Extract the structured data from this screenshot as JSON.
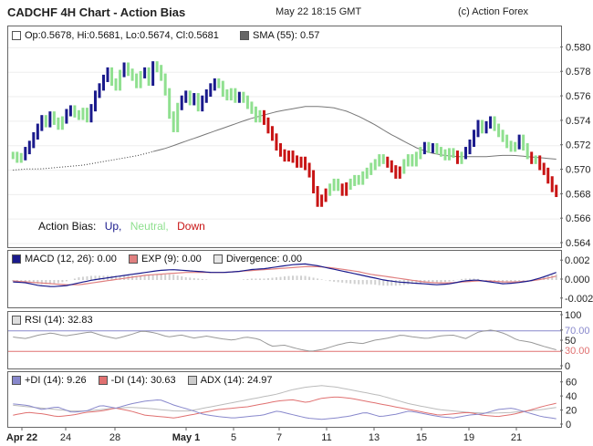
{
  "header": {
    "title": "CADCHF 4H Chart - Action Bias",
    "datetime": "May 22 18:15 GMT",
    "copyright": "(c) Action Forex"
  },
  "colors": {
    "up": "#1a1a8c",
    "neutral": "#90e090",
    "down": "#c81414",
    "sma": "#777777",
    "macd": "#1a1a8c",
    "exp": "#e08080",
    "divergence": "#d0d0d0",
    "rsi": "#999999",
    "rsi_upper": "#8888cc",
    "rsi_lower": "#e07070",
    "plus_di": "#8888cc",
    "minus_di": "#e07070",
    "adx": "#bbbbbb"
  },
  "main": {
    "ohlc_legend": "Op:0.5678, Hi:0.5681, Lo:0.5674, Cl:0.5681",
    "sma_legend": "SMA (55): 0.57",
    "bias_label": "Action Bias:",
    "bias_up": "Up,",
    "bias_neutral": "Neutral,",
    "bias_down": "Down"
  },
  "macd": {
    "macd_legend": "MACD (12, 26): 0.00",
    "exp_legend": "EXP (9): 0.00",
    "div_legend": "Divergence: 0.00"
  },
  "rsi": {
    "rsi_legend": "RSI (14): 32.83"
  },
  "dmi": {
    "plus_di_legend": "+DI (14): 9.26",
    "minus_di_legend": "-DI (14): 30.63",
    "adx_legend": "ADX (14): 24.97"
  },
  "chart_data": {
    "type": "bar",
    "x_tick_labels": [
      "Apr 22",
      "24",
      "28",
      "May 1",
      "5",
      "7",
      "11",
      "13",
      "15",
      "19",
      "21"
    ],
    "bold_tick_labels": [
      "Apr 22",
      "May 1"
    ],
    "price_axis": {
      "ylim": [
        0.564,
        0.581
      ],
      "ticks": [
        "0.580",
        "0.578",
        "0.576",
        "0.574",
        "0.572",
        "0.570",
        "0.568",
        "0.566",
        "0.564"
      ]
    },
    "macd_axis": {
      "ylim": [
        -0.0025,
        0.0025
      ],
      "ticks": [
        "0.002",
        "0.000",
        "-0.002"
      ]
    },
    "rsi_axis": {
      "ylim": [
        0,
        100
      ],
      "ticks": [
        "100",
        "70.00",
        "50",
        "30.00",
        "0"
      ],
      "upper_level": 70,
      "lower_level": 30
    },
    "dmi_axis": {
      "ylim": [
        0,
        70
      ],
      "ticks": [
        "60",
        "40",
        "20",
        "0"
      ]
    },
    "closes": [
      0.5712,
      0.5709,
      0.5711,
      0.5716,
      0.5721,
      0.5728,
      0.5735,
      0.5742,
      0.5738,
      0.5745,
      0.574,
      0.5736,
      0.5741,
      0.5747,
      0.575,
      0.5746,
      0.5744,
      0.5748,
      0.5742,
      0.5751,
      0.5762,
      0.5768,
      0.5775,
      0.5781,
      0.5772,
      0.5768,
      0.5779,
      0.5785,
      0.578,
      0.5776,
      0.577,
      0.5778,
      0.5781,
      0.5772,
      0.5786,
      0.5783,
      0.5776,
      0.5764,
      0.5745,
      0.5734,
      0.5752,
      0.5758,
      0.5762,
      0.5756,
      0.576,
      0.5751,
      0.5758,
      0.5763,
      0.5768,
      0.5772,
      0.577,
      0.5763,
      0.576,
      0.5764,
      0.5758,
      0.5761,
      0.5758,
      0.5753,
      0.5749,
      0.5742,
      0.5746,
      0.574,
      0.5733,
      0.5727,
      0.5719,
      0.5714,
      0.571,
      0.5713,
      0.5709,
      0.5705,
      0.5708,
      0.5703,
      0.5697,
      0.5684,
      0.5673,
      0.5677,
      0.5682,
      0.5686,
      0.569,
      0.5686,
      0.5682,
      0.5687,
      0.569,
      0.5693,
      0.5691,
      0.5696,
      0.5699,
      0.5703,
      0.5706,
      0.571,
      0.5708,
      0.5705,
      0.5701,
      0.5696,
      0.57,
      0.5706,
      0.571,
      0.5706,
      0.5712,
      0.5716,
      0.572,
      0.5717,
      0.5719,
      0.5716,
      0.5714,
      0.5711,
      0.5715,
      0.5713,
      0.5708,
      0.5712,
      0.5716,
      0.5722,
      0.573,
      0.5738,
      0.5733,
      0.5737,
      0.5741,
      0.5735,
      0.573,
      0.5726,
      0.5721,
      0.5718,
      0.572,
      0.5726,
      0.5719,
      0.5712,
      0.5708,
      0.5709,
      0.5703,
      0.5699,
      0.5692,
      0.5685,
      0.5681
    ],
    "bias": "derived per bar: up / neutral / down as coloured",
    "sma_55": [
      0.57,
      0.5701,
      0.5701,
      0.5702,
      0.5703,
      0.5704,
      0.5706,
      0.5708,
      0.571,
      0.5712,
      0.5715,
      0.5718,
      0.5722,
      0.5726,
      0.573,
      0.5734,
      0.5738,
      0.5742,
      0.5745,
      0.5748,
      0.575,
      0.5752,
      0.5752,
      0.5751,
      0.5748,
      0.5743,
      0.5737,
      0.573,
      0.5724,
      0.5718,
      0.5714,
      0.5712,
      0.5711,
      0.5711,
      0.5711,
      0.5712,
      0.5712,
      0.5711,
      0.571,
      0.5709
    ],
    "rsi_values": [
      58,
      55,
      62,
      66,
      60,
      64,
      68,
      60,
      55,
      62,
      70,
      66,
      58,
      62,
      56,
      60,
      55,
      52,
      58,
      54,
      40,
      42,
      35,
      30,
      34,
      42,
      48,
      45,
      52,
      56,
      62,
      58,
      55,
      60,
      62,
      55,
      68,
      72,
      65,
      52,
      48,
      40,
      33
    ],
    "macd_values": [
      -0.0002,
      -0.0003,
      -0.0006,
      -0.0007,
      -0.0006,
      -0.0003,
      0.0,
      0.0002,
      0.0004,
      0.0006,
      0.0008,
      0.001,
      0.0011,
      0.001,
      0.0009,
      0.0008,
      0.0008,
      0.0009,
      0.0011,
      0.0012,
      0.0014,
      0.0016,
      0.0017,
      0.0015,
      0.0012,
      0.0009,
      0.0006,
      0.0003,
      0.0,
      -0.0002,
      -0.0003,
      -0.0004,
      -0.0005,
      -0.0004,
      -0.0001,
      0.0,
      -0.0002,
      -0.0004,
      -0.0003,
      -0.0001,
      0.0003,
      0.0008
    ],
    "exp_values": [
      -0.0001,
      -0.0002,
      -0.0003,
      -0.0004,
      -0.0005,
      -0.0005,
      -0.0003,
      -0.0001,
      0.0001,
      0.0003,
      0.0005,
      0.0006,
      0.0007,
      0.0008,
      0.0008,
      0.0008,
      0.0008,
      0.0009,
      0.001,
      0.0011,
      0.0012,
      0.0013,
      0.0014,
      0.0014,
      0.0013,
      0.0011,
      0.0009,
      0.0006,
      0.0004,
      0.0002,
      0.0,
      -0.0002,
      -0.0003,
      -0.0003,
      -0.0002,
      -0.0001,
      -0.0001,
      -0.0002,
      -0.0002,
      -0.0001,
      0.0001,
      0.0004
    ],
    "plus_di_values": [
      30,
      28,
      22,
      26,
      18,
      20,
      28,
      24,
      30,
      34,
      36,
      28,
      22,
      15,
      12,
      10,
      12,
      14,
      20,
      15,
      10,
      8,
      10,
      13,
      18,
      12,
      15,
      20,
      16,
      12,
      10,
      14,
      16,
      22,
      24,
      18,
      12,
      9
    ],
    "minus_di_values": [
      14,
      18,
      16,
      12,
      14,
      18,
      20,
      24,
      20,
      14,
      12,
      10,
      14,
      18,
      22,
      24,
      26,
      30,
      34,
      36,
      32,
      38,
      40,
      38,
      34,
      30,
      26,
      22,
      18,
      14,
      16,
      18,
      14,
      12,
      15,
      20,
      26,
      31
    ],
    "adx_values": [
      28,
      26,
      24,
      22,
      20,
      20,
      22,
      24,
      25,
      24,
      22,
      20,
      20,
      24,
      28,
      32,
      36,
      40,
      44,
      50,
      54,
      56,
      54,
      50,
      46,
      42,
      36,
      30,
      26,
      22,
      20,
      18,
      17,
      17,
      18,
      20,
      22,
      25
    ]
  }
}
